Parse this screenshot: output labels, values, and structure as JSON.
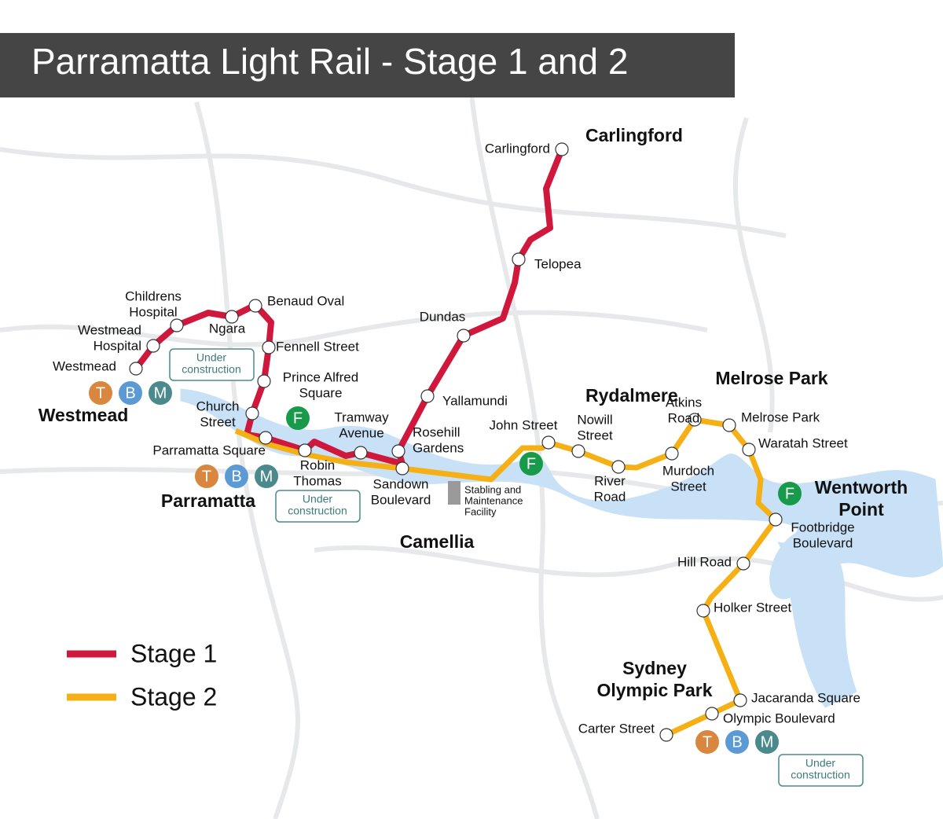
{
  "title": "Parramatta Light Rail - Stage 1 and 2",
  "stations": [
    {
      "name": [
        "Westmead"
      ]
    },
    {
      "name": [
        "Westmead",
        "Hospital"
      ]
    },
    {
      "name": [
        "Childrens",
        "Hospital"
      ]
    },
    {
      "name": [
        "Ngara"
      ]
    },
    {
      "name": [
        "Benaud Oval"
      ]
    },
    {
      "name": [
        "Fennell Street"
      ]
    },
    {
      "name": [
        "Prince Alfred",
        "Square"
      ]
    },
    {
      "name": [
        "Church",
        "Street"
      ]
    },
    {
      "name": [
        "Parramatta Square"
      ]
    },
    {
      "name": [
        "Robin",
        "Thomas"
      ]
    },
    {
      "name": [
        "Tramway",
        "Avenue"
      ]
    },
    {
      "name": [
        "Rosehill",
        "Gardens"
      ]
    },
    {
      "name": [
        "Yallamundi"
      ]
    },
    {
      "name": [
        "Dundas"
      ]
    },
    {
      "name": [
        "Telopea"
      ]
    },
    {
      "name": [
        "Carlingford"
      ]
    },
    {
      "name": [
        "Sandown",
        "Boulevard"
      ]
    },
    {
      "name": [
        "John Street"
      ]
    },
    {
      "name": [
        "Nowill",
        "Street"
      ]
    },
    {
      "name": [
        "River",
        "Road"
      ]
    },
    {
      "name": [
        "Murdoch",
        "Street"
      ]
    },
    {
      "name": [
        "Atkins",
        "Road"
      ]
    },
    {
      "name": [
        "Melrose Park"
      ]
    },
    {
      "name": [
        "Waratah Street"
      ]
    },
    {
      "name": [
        "Footbridge",
        "Boulevard"
      ]
    },
    {
      "name": [
        "Hill Road"
      ]
    },
    {
      "name": [
        "Holker Street"
      ]
    },
    {
      "name": [
        "Jacaranda Square"
      ]
    },
    {
      "name": [
        "Olympic Boulevard"
      ]
    },
    {
      "name": [
        "Carter Street"
      ]
    }
  ],
  "areas": [
    {
      "name": [
        "Carlingford"
      ]
    },
    {
      "name": [
        "Westmead"
      ]
    },
    {
      "name": [
        "Parramatta"
      ]
    },
    {
      "name": [
        "Camellia"
      ]
    },
    {
      "name": [
        "Rydalmere"
      ]
    },
    {
      "name": [
        "Melrose Park"
      ]
    },
    {
      "name": [
        "Wentworth",
        "Point"
      ]
    },
    {
      "name": [
        "Sydney",
        "Olympic Park"
      ]
    }
  ],
  "modes": {
    "train": "T",
    "bus": "B",
    "metro": "M",
    "ferry": "F"
  },
  "under_construction": [
    "Under",
    "construction"
  ],
  "facility": [
    "Stabling and",
    "Maintenance",
    "Facility"
  ],
  "legend": [
    {
      "name": "Stage 1",
      "color": "#d0183c"
    },
    {
      "name": "Stage 2",
      "color": "#f5b016"
    }
  ]
}
